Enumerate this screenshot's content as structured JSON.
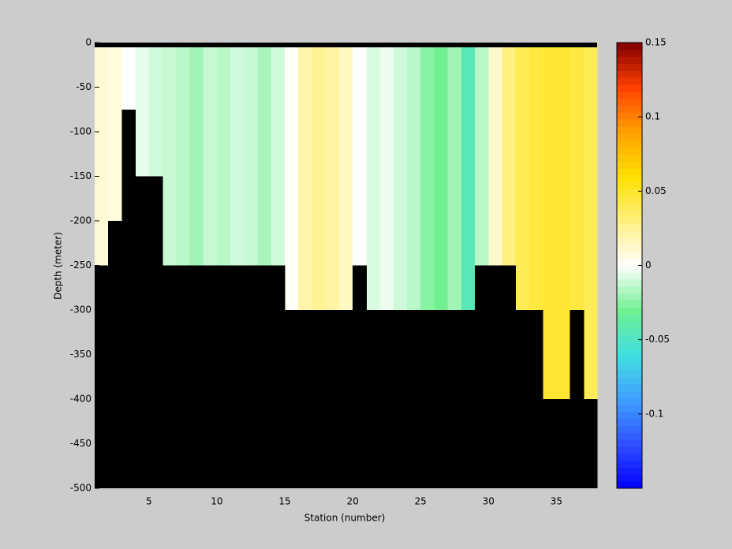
{
  "chart_data": {
    "type": "heatmap",
    "xlabel": "Station (number)",
    "ylabel": "Depth (meter)",
    "x_edges": [
      1,
      2,
      3,
      4,
      5,
      6,
      7,
      8,
      9,
      10,
      11,
      12,
      13,
      14,
      15,
      16,
      17,
      18,
      19,
      20,
      21,
      22,
      23,
      24,
      25,
      26,
      27,
      28,
      29,
      30,
      31,
      32,
      33,
      34,
      35,
      36,
      37,
      38
    ],
    "y_edges": [
      0,
      -50,
      -100,
      -150,
      -200,
      -250,
      -300,
      -350,
      -400,
      -450,
      -500
    ],
    "z": [
      [
        0.01,
        0.008,
        0.0,
        -0.005,
        -0.01,
        -0.012,
        -0.015,
        -0.02,
        -0.012,
        -0.015,
        -0.01,
        -0.012,
        -0.018,
        -0.01,
        0.002,
        0.02,
        0.025,
        0.022,
        0.015,
        0.0,
        -0.008,
        -0.004,
        -0.01,
        -0.015,
        -0.025,
        -0.03,
        -0.02,
        -0.045,
        -0.015,
        0.012,
        0.03,
        0.04,
        0.045,
        0.048,
        0.048,
        0.045,
        0.04
      ],
      [
        0.01,
        0.008,
        0.0,
        -0.005,
        -0.01,
        -0.012,
        -0.015,
        -0.02,
        -0.012,
        -0.015,
        -0.01,
        -0.012,
        -0.018,
        -0.01,
        0.002,
        0.02,
        0.025,
        0.022,
        0.015,
        0.0,
        -0.008,
        -0.004,
        -0.01,
        -0.015,
        -0.025,
        -0.03,
        -0.02,
        -0.045,
        -0.015,
        0.012,
        0.03,
        0.04,
        0.045,
        0.048,
        0.048,
        0.045,
        0.04
      ],
      [
        0.01,
        0.008,
        null,
        -0.005,
        -0.01,
        -0.012,
        -0.015,
        -0.02,
        -0.012,
        -0.015,
        -0.01,
        -0.012,
        -0.018,
        -0.01,
        0.002,
        0.02,
        0.025,
        0.022,
        0.015,
        0.0,
        -0.008,
        -0.004,
        -0.01,
        -0.015,
        -0.025,
        -0.03,
        -0.02,
        -0.045,
        -0.015,
        0.012,
        0.03,
        0.04,
        0.045,
        0.048,
        0.048,
        0.045,
        0.04
      ],
      [
        0.01,
        0.008,
        null,
        null,
        null,
        -0.012,
        -0.015,
        -0.02,
        -0.012,
        -0.015,
        -0.01,
        -0.012,
        -0.018,
        -0.01,
        0.002,
        0.02,
        0.025,
        0.022,
        0.015,
        0.0,
        -0.008,
        -0.004,
        -0.01,
        -0.015,
        -0.025,
        -0.03,
        -0.02,
        -0.045,
        -0.015,
        0.012,
        0.03,
        0.04,
        0.045,
        0.048,
        0.048,
        0.045,
        0.04
      ],
      [
        0.01,
        null,
        null,
        null,
        null,
        -0.012,
        -0.015,
        -0.02,
        -0.012,
        -0.015,
        -0.01,
        -0.012,
        -0.018,
        -0.01,
        0.002,
        0.02,
        0.025,
        0.022,
        0.015,
        0.0,
        -0.008,
        -0.004,
        -0.01,
        -0.015,
        -0.025,
        -0.03,
        -0.02,
        -0.045,
        -0.015,
        0.012,
        0.03,
        0.04,
        0.045,
        0.048,
        0.048,
        0.045,
        0.04
      ],
      [
        null,
        null,
        null,
        null,
        null,
        null,
        null,
        null,
        null,
        null,
        null,
        null,
        null,
        null,
        0.002,
        0.02,
        0.025,
        0.022,
        0.015,
        null,
        -0.008,
        -0.004,
        -0.01,
        -0.015,
        -0.025,
        -0.03,
        -0.02,
        -0.045,
        null,
        null,
        null,
        0.04,
        0.045,
        0.048,
        0.048,
        0.045,
        0.04
      ],
      [
        null,
        null,
        null,
        null,
        null,
        null,
        null,
        null,
        null,
        null,
        null,
        null,
        null,
        null,
        null,
        null,
        null,
        null,
        null,
        null,
        null,
        null,
        null,
        null,
        null,
        null,
        null,
        null,
        null,
        null,
        null,
        null,
        null,
        0.048,
        0.048,
        null,
        0.04
      ],
      [
        null,
        null,
        null,
        null,
        null,
        null,
        null,
        null,
        null,
        null,
        null,
        null,
        null,
        null,
        null,
        null,
        null,
        null,
        null,
        null,
        null,
        null,
        null,
        null,
        null,
        null,
        null,
        null,
        null,
        null,
        null,
        null,
        null,
        0.048,
        0.048,
        null,
        0.04
      ],
      [
        null,
        null,
        null,
        null,
        null,
        null,
        null,
        null,
        null,
        null,
        null,
        null,
        null,
        null,
        null,
        null,
        null,
        null,
        null,
        null,
        null,
        null,
        null,
        null,
        null,
        null,
        null,
        null,
        null,
        null,
        null,
        null,
        null,
        null,
        null,
        null,
        null
      ],
      [
        null,
        null,
        null,
        null,
        null,
        null,
        null,
        null,
        null,
        null,
        null,
        null,
        null,
        null,
        null,
        null,
        null,
        null,
        null,
        null,
        null,
        null,
        null,
        null,
        null,
        null,
        null,
        null,
        null,
        null,
        null,
        null,
        null,
        null,
        null,
        null,
        null
      ]
    ],
    "bottom_depth": [
      -250,
      -200,
      -75,
      -150,
      -150,
      -250,
      -250,
      -250,
      -250,
      -250,
      -250,
      -250,
      -250,
      -250,
      -300,
      -300,
      -300,
      -300,
      -300,
      -250,
      -300,
      -300,
      -300,
      -300,
      -300,
      -300,
      -300,
      -300,
      -250,
      -250,
      -250,
      -300,
      -300,
      -400,
      -400,
      -300,
      -400
    ],
    "bottom_color": "#000000",
    "xlim": [
      1,
      38
    ],
    "ylim": [
      -500,
      0
    ],
    "xticks": [
      5,
      10,
      15,
      20,
      25,
      30,
      35
    ],
    "yticks": [
      0,
      -50,
      -100,
      -150,
      -200,
      -250,
      -300,
      -350,
      -400,
      -450,
      -500
    ],
    "clim": [
      -0.15,
      0.15
    ],
    "cticks": [
      -0.1,
      -0.05,
      0,
      0.05,
      0.1,
      0.15
    ],
    "colormap": [
      "#0000ff",
      "#3050ff",
      "#40a0ff",
      "#40e0e0",
      "#70f090",
      "#ffffff",
      "#fff080",
      "#ffe000",
      "#ffa000",
      "#ff4000",
      "#800000"
    ]
  }
}
